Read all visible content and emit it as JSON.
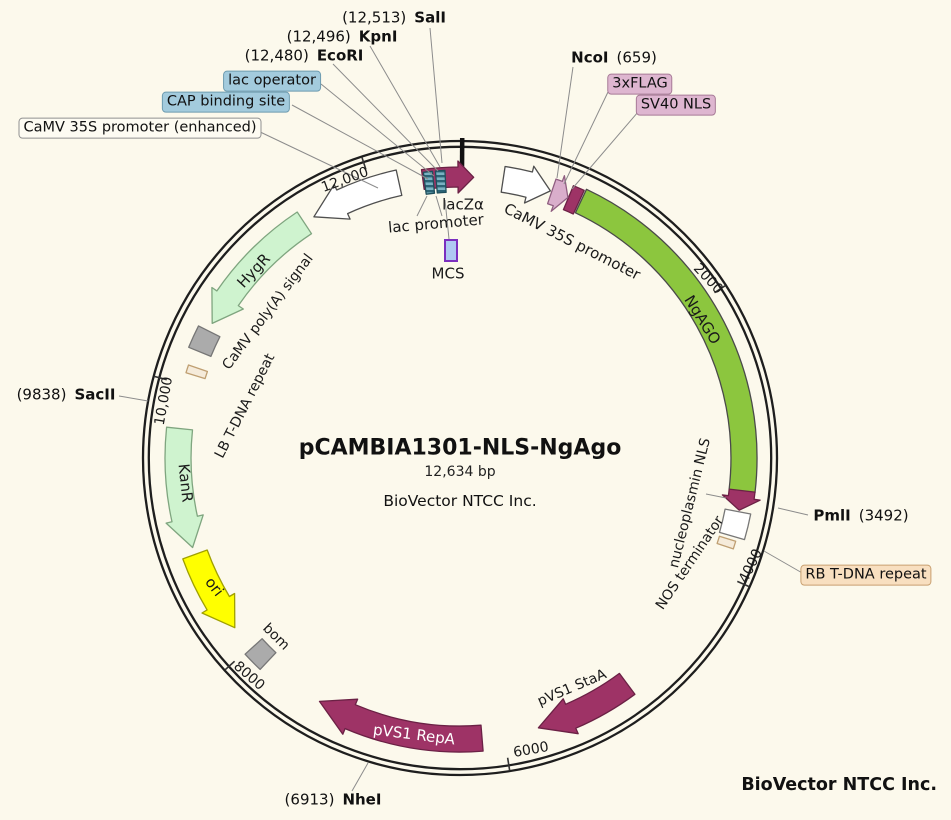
{
  "title": {
    "name": "pCAMBIA1301-NLS-NgAgo",
    "size": "12,634 bp",
    "company": "BioVector NTCC Inc."
  },
  "watermark": "BioVector NTCC Inc.",
  "plasmid": {
    "length_bp": 12634,
    "scale_ticks": [
      {
        "id": "2000",
        "label": "2000"
      },
      {
        "id": "4000",
        "label": "4000"
      },
      {
        "id": "6000",
        "label": "6000"
      },
      {
        "id": "8000",
        "label": "8000"
      },
      {
        "id": "10000",
        "label": "10,000"
      },
      {
        "id": "12000",
        "label": "12,000"
      }
    ],
    "inline_labels": [
      {
        "id": "lacza",
        "text": "lacZα"
      },
      {
        "id": "lac_promoter",
        "text": "lac promoter"
      },
      {
        "id": "mcs",
        "text": "MCS"
      },
      {
        "id": "camv35s",
        "text": "CaMV 35S promoter"
      },
      {
        "id": "ngago",
        "text": "NgAGO"
      },
      {
        "id": "nuc_nls",
        "text": "nucleoplasmin NLS"
      },
      {
        "id": "nos_term",
        "text": "NOS terminator"
      },
      {
        "id": "pvs1_staa",
        "text": "pVS1 StaA"
      },
      {
        "id": "pvs1_repa",
        "text": "pVS1 RepA"
      },
      {
        "id": "bom",
        "text": "bom"
      },
      {
        "id": "ori",
        "text": "ori"
      },
      {
        "id": "kanr",
        "text": "KanR"
      },
      {
        "id": "lb_repeat",
        "text": "LB T-DNA repeat"
      },
      {
        "id": "polya",
        "text": "CaMV poly(A) signal"
      },
      {
        "id": "hygr",
        "text": "HygR"
      }
    ],
    "callouts": [
      {
        "id": "lac_operator",
        "text": "lac operator",
        "style": "blue"
      },
      {
        "id": "cap_site",
        "text": "CAP binding site",
        "style": "blue"
      },
      {
        "id": "camv35s_enh",
        "text": "CaMV 35S promoter (enhanced)",
        "style": "white"
      },
      {
        "id": "flag3x",
        "text": "3xFLAG",
        "style": "pink"
      },
      {
        "id": "sv40",
        "text": "SV40 NLS",
        "style": "pink"
      },
      {
        "id": "rb_repeat",
        "text": "RB T-DNA repeat",
        "style": "orange"
      }
    ],
    "restriction_sites": [
      {
        "id": "sali",
        "position": "(12,513)",
        "enzyme": "SalI",
        "order": "pos-first"
      },
      {
        "id": "kpni",
        "position": "(12,496)",
        "enzyme": "KpnI",
        "order": "pos-first"
      },
      {
        "id": "ecori",
        "position": "(12,480)",
        "enzyme": "EcoRI",
        "order": "pos-first"
      },
      {
        "id": "ncoi",
        "position": "(659)",
        "enzyme": "NcoI",
        "order": "name-first"
      },
      {
        "id": "pmli",
        "position": "(3492)",
        "enzyme": "PmlI",
        "order": "name-first"
      },
      {
        "id": "sacii",
        "position": "(9838)",
        "enzyme": "SacII",
        "order": "pos-first"
      },
      {
        "id": "nhei",
        "position": "(6913)",
        "enzyme": "NheI",
        "order": "pos-first"
      }
    ]
  },
  "colors": {
    "background": "#FCF9EC",
    "ring": "#1E1E1E",
    "magenta": "#9E3366",
    "magenta_dark": "#6B2145",
    "green": "#8CC63E",
    "green_stroke": "#4A4A4A",
    "light_green": "#CFF3CF",
    "light_green_stroke": "#7FA57F",
    "yellow": "#FFFF00",
    "yellow_stroke": "#A0A000",
    "gray_box": "#ABABAB",
    "gray_box_stroke": "#767676",
    "white_feature": "#FFFFFF",
    "white_stroke": "#4F4F4F",
    "pink_feature": "#D9AECB",
    "pink_stroke": "#8F5E80",
    "beige_strip": "#F5EBDA",
    "beige_stroke": "#BF9F72",
    "teal_stripe_light": "#79B2C2",
    "teal_stripe_dark": "#2B6375",
    "mcs_fill": "#AFC9F2",
    "mcs_stroke": "#7B2FBF",
    "callout_blue": "#A3CBDD",
    "callout_blue_border": "#6E9CB0",
    "callout_pink": "#DEB6D0",
    "callout_pink_border": "#A77A97",
    "callout_orange": "#F8DFC0",
    "callout_orange_border": "#C89F6F",
    "callout_white": "#FDFBF2",
    "callout_white_border": "#909090",
    "leader": "#8C8C8C",
    "tick": "#333333"
  }
}
